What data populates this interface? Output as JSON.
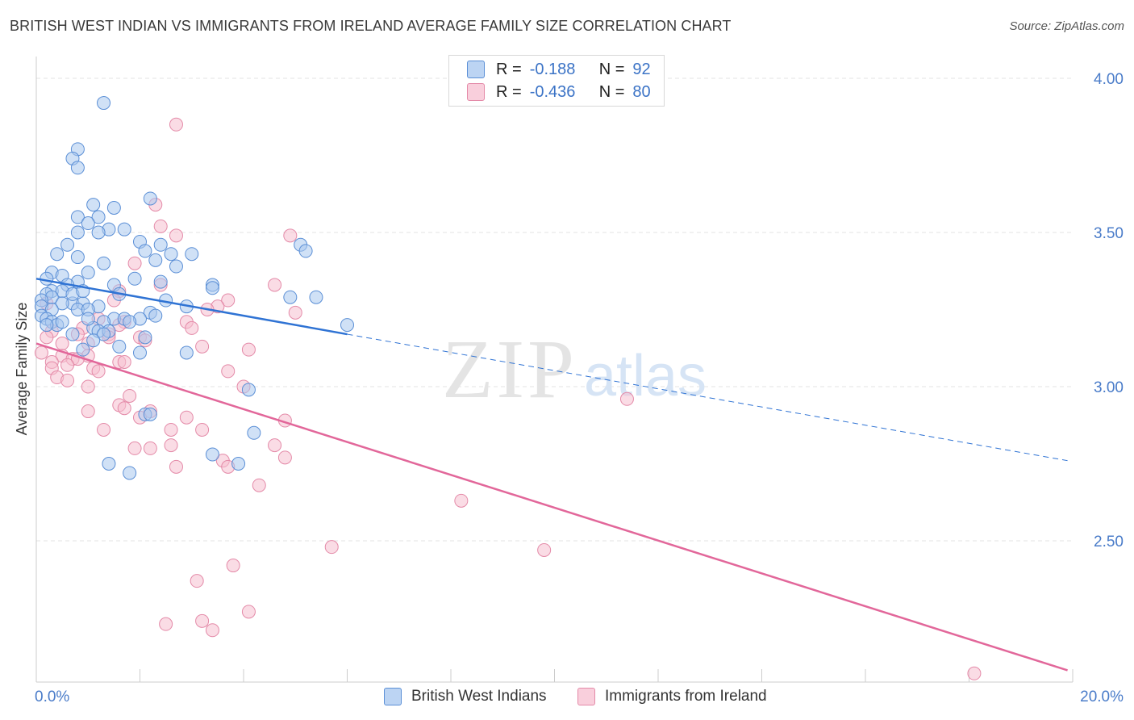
{
  "title": "BRITISH WEST INDIAN VS IMMIGRANTS FROM IRELAND AVERAGE FAMILY SIZE CORRELATION CHART",
  "source": "Source: ZipAtlas.com",
  "watermark": {
    "zip": "ZIP",
    "atlas": "atlas"
  },
  "legend": {
    "series1": {
      "r_label": "R =",
      "r_value": "-0.188",
      "n_label": "N =",
      "n_value": "92"
    },
    "series2": {
      "r_label": "R =",
      "r_value": "-0.436",
      "n_label": "N =",
      "n_value": "80"
    }
  },
  "colors": {
    "blue_fill": "#a9c8ee",
    "blue_stroke": "#5b8fd6",
    "blue_line": "#2f73d4",
    "pink_fill": "#f6bfd0",
    "pink_stroke": "#e48aa8",
    "pink_line": "#e2679a",
    "tick_text": "#4a7cc9"
  },
  "chart_data": {
    "type": "scatter",
    "title": "BRITISH WEST INDIAN VS IMMIGRANTS FROM IRELAND AVERAGE FAMILY SIZE CORRELATION CHART",
    "xlabel": "",
    "ylabel": "Average Family Size",
    "xlim": [
      0,
      20
    ],
    "ylim": [
      2.05,
      4.08
    ],
    "x_tick_labels": [
      "0.0%",
      "20.0%"
    ],
    "y_ticks": [
      2.5,
      3.0,
      3.5,
      4.0
    ],
    "y_tick_labels": [
      "2.50",
      "3.00",
      "3.50",
      "4.00"
    ],
    "grid": true,
    "legend_position": "top-center",
    "series": [
      {
        "name": "British West Indians",
        "trend": {
          "x": [
            0.0,
            6.0
          ],
          "y": [
            3.35,
            3.17
          ],
          "dashed_extension_x": [
            6.0,
            19.9
          ],
          "dashed_extension_y": [
            3.17,
            2.76
          ]
        },
        "points": [
          [
            1.3,
            3.92
          ],
          [
            0.8,
            3.77
          ],
          [
            0.7,
            3.74
          ],
          [
            0.8,
            3.71
          ],
          [
            2.2,
            3.61
          ],
          [
            1.5,
            3.58
          ],
          [
            1.1,
            3.59
          ],
          [
            0.8,
            3.55
          ],
          [
            1.2,
            3.55
          ],
          [
            1.0,
            3.53
          ],
          [
            1.7,
            3.51
          ],
          [
            1.4,
            3.51
          ],
          [
            1.2,
            3.5
          ],
          [
            0.8,
            3.5
          ],
          [
            2.0,
            3.47
          ],
          [
            2.4,
            3.46
          ],
          [
            5.1,
            3.46
          ],
          [
            0.6,
            3.46
          ],
          [
            2.1,
            3.44
          ],
          [
            5.2,
            3.44
          ],
          [
            2.6,
            3.43
          ],
          [
            3.0,
            3.43
          ],
          [
            0.4,
            3.43
          ],
          [
            0.8,
            3.42
          ],
          [
            2.3,
            3.41
          ],
          [
            1.3,
            3.4
          ],
          [
            2.7,
            3.39
          ],
          [
            0.3,
            3.37
          ],
          [
            1.0,
            3.37
          ],
          [
            0.5,
            3.36
          ],
          [
            0.8,
            3.34
          ],
          [
            0.2,
            3.35
          ],
          [
            2.4,
            3.34
          ],
          [
            0.6,
            3.33
          ],
          [
            1.5,
            3.33
          ],
          [
            3.4,
            3.33
          ],
          [
            0.3,
            3.31
          ],
          [
            3.4,
            3.32
          ],
          [
            0.5,
            3.31
          ],
          [
            0.2,
            3.3
          ],
          [
            0.3,
            3.29
          ],
          [
            0.1,
            3.28
          ],
          [
            4.9,
            3.29
          ],
          [
            5.4,
            3.29
          ],
          [
            0.7,
            3.27
          ],
          [
            0.9,
            3.27
          ],
          [
            0.5,
            3.27
          ],
          [
            1.2,
            3.26
          ],
          [
            0.1,
            3.26
          ],
          [
            0.8,
            3.25
          ],
          [
            1.0,
            3.25
          ],
          [
            2.9,
            3.26
          ],
          [
            0.3,
            3.25
          ],
          [
            2.2,
            3.24
          ],
          [
            0.1,
            3.23
          ],
          [
            1.5,
            3.22
          ],
          [
            1.7,
            3.22
          ],
          [
            2.0,
            3.22
          ],
          [
            0.2,
            3.22
          ],
          [
            0.3,
            3.21
          ],
          [
            1.8,
            3.21
          ],
          [
            1.3,
            3.21
          ],
          [
            0.4,
            3.2
          ],
          [
            1.1,
            3.19
          ],
          [
            1.2,
            3.18
          ],
          [
            1.4,
            3.18
          ],
          [
            1.3,
            3.17
          ],
          [
            0.7,
            3.17
          ],
          [
            2.1,
            3.16
          ],
          [
            1.1,
            3.15
          ],
          [
            1.6,
            3.13
          ],
          [
            0.9,
            3.12
          ],
          [
            2.0,
            3.11
          ],
          [
            2.9,
            3.11
          ],
          [
            6.0,
            3.2
          ],
          [
            4.1,
            2.99
          ],
          [
            2.1,
            2.91
          ],
          [
            2.2,
            2.91
          ],
          [
            4.2,
            2.85
          ],
          [
            3.4,
            2.78
          ],
          [
            3.9,
            2.75
          ],
          [
            1.4,
            2.75
          ],
          [
            1.8,
            2.72
          ],
          [
            0.7,
            3.3
          ],
          [
            1.6,
            3.3
          ],
          [
            0.2,
            3.2
          ],
          [
            0.9,
            3.31
          ],
          [
            1.9,
            3.35
          ],
          [
            2.3,
            3.23
          ],
          [
            0.5,
            3.21
          ],
          [
            1.0,
            3.22
          ],
          [
            2.5,
            3.28
          ]
        ]
      },
      {
        "name": "Immigrants from Ireland",
        "trend": {
          "x": [
            0.0,
            19.9
          ],
          "y": [
            3.14,
            2.08
          ]
        },
        "points": [
          [
            2.7,
            3.85
          ],
          [
            2.3,
            3.59
          ],
          [
            2.4,
            3.52
          ],
          [
            2.7,
            3.49
          ],
          [
            4.9,
            3.49
          ],
          [
            1.9,
            3.4
          ],
          [
            2.4,
            3.33
          ],
          [
            4.6,
            3.33
          ],
          [
            1.6,
            3.31
          ],
          [
            1.5,
            3.28
          ],
          [
            3.7,
            3.28
          ],
          [
            3.5,
            3.26
          ],
          [
            3.3,
            3.25
          ],
          [
            5.0,
            3.24
          ],
          [
            1.2,
            3.22
          ],
          [
            1.7,
            3.21
          ],
          [
            2.9,
            3.21
          ],
          [
            1.6,
            3.2
          ],
          [
            0.9,
            3.19
          ],
          [
            3.0,
            3.19
          ],
          [
            0.3,
            3.18
          ],
          [
            0.8,
            3.17
          ],
          [
            1.4,
            3.17
          ],
          [
            2.0,
            3.16
          ],
          [
            2.1,
            3.15
          ],
          [
            0.5,
            3.14
          ],
          [
            1.0,
            3.14
          ],
          [
            3.2,
            3.13
          ],
          [
            4.1,
            3.12
          ],
          [
            0.1,
            3.11
          ],
          [
            1.0,
            3.1
          ],
          [
            0.5,
            3.1
          ],
          [
            0.7,
            3.09
          ],
          [
            0.8,
            3.09
          ],
          [
            0.3,
            3.08
          ],
          [
            1.6,
            3.08
          ],
          [
            1.7,
            3.08
          ],
          [
            0.6,
            3.07
          ],
          [
            0.3,
            3.06
          ],
          [
            1.1,
            3.06
          ],
          [
            1.2,
            3.05
          ],
          [
            3.7,
            3.05
          ],
          [
            0.4,
            3.03
          ],
          [
            0.6,
            3.02
          ],
          [
            4.0,
            3.0
          ],
          [
            1.0,
            3.0
          ],
          [
            1.8,
            2.97
          ],
          [
            11.4,
            2.96
          ],
          [
            1.6,
            2.94
          ],
          [
            1.7,
            2.93
          ],
          [
            1.0,
            2.92
          ],
          [
            2.2,
            2.92
          ],
          [
            2.9,
            2.9
          ],
          [
            2.0,
            2.9
          ],
          [
            4.8,
            2.89
          ],
          [
            2.6,
            2.86
          ],
          [
            3.2,
            2.86
          ],
          [
            1.3,
            2.86
          ],
          [
            4.6,
            2.81
          ],
          [
            2.6,
            2.81
          ],
          [
            1.9,
            2.8
          ],
          [
            2.2,
            2.8
          ],
          [
            4.8,
            2.77
          ],
          [
            3.6,
            2.76
          ],
          [
            2.7,
            2.74
          ],
          [
            3.7,
            2.74
          ],
          [
            4.3,
            2.68
          ],
          [
            8.2,
            2.63
          ],
          [
            5.7,
            2.48
          ],
          [
            9.8,
            2.47
          ],
          [
            3.8,
            2.42
          ],
          [
            3.1,
            2.37
          ],
          [
            4.1,
            2.27
          ],
          [
            3.2,
            2.24
          ],
          [
            2.5,
            2.23
          ],
          [
            3.4,
            2.21
          ],
          [
            18.1,
            2.07
          ],
          [
            0.2,
            3.16
          ],
          [
            1.4,
            3.16
          ],
          [
            0.2,
            3.27
          ]
        ]
      }
    ]
  },
  "bottom_legend": {
    "item1": "British West Indians",
    "item2": "Immigrants from Ireland"
  }
}
